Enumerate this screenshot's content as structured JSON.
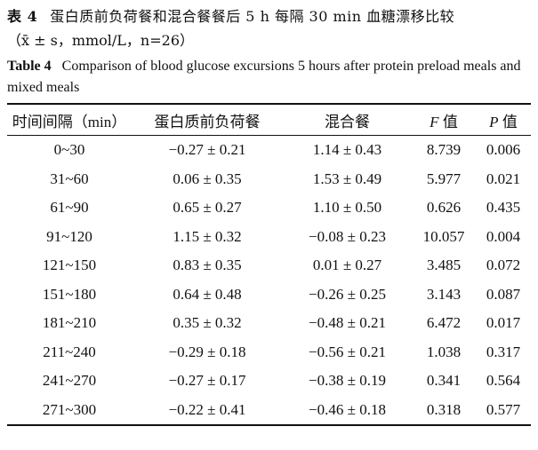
{
  "caption": {
    "cn_label": "表 4",
    "cn_title": "蛋白质前负荷餐和混合餐餐后 5 h 每隔 30 min 血糖漂移比较",
    "cn_subtitle": "（x̄ ± s，mmol/L，n=26）",
    "en_label": "Table 4",
    "en_title": "Comparison of blood glucose excursions 5 hours after protein preload meals and mixed meals"
  },
  "table": {
    "headers": {
      "interval": "时间间隔（min）",
      "protein": "蛋白质前负荷餐",
      "mixed": "混合餐",
      "f_symbol": "F",
      "f_suffix": " 值",
      "p_symbol": "P",
      "p_suffix": " 值"
    },
    "rows": [
      {
        "interval": "0~30",
        "protein": "−0.27 ± 0.21",
        "mixed": "1.14 ± 0.43",
        "f": "8.739",
        "p": "0.006"
      },
      {
        "interval": "31~60",
        "protein": "0.06 ± 0.35",
        "mixed": "1.53 ± 0.49",
        "f": "5.977",
        "p": "0.021"
      },
      {
        "interval": "61~90",
        "protein": "0.65 ± 0.27",
        "mixed": "1.10 ± 0.50",
        "f": "0.626",
        "p": "0.435"
      },
      {
        "interval": "91~120",
        "protein": "1.15 ± 0.32",
        "mixed": "−0.08 ± 0.23",
        "f": "10.057",
        "p": "0.004"
      },
      {
        "interval": "121~150",
        "protein": "0.83 ± 0.35",
        "mixed": "0.01 ± 0.27",
        "f": "3.485",
        "p": "0.072"
      },
      {
        "interval": "151~180",
        "protein": "0.64 ± 0.48",
        "mixed": "−0.26 ± 0.25",
        "f": "3.143",
        "p": "0.087"
      },
      {
        "interval": "181~210",
        "protein": "0.35 ± 0.32",
        "mixed": "−0.48 ± 0.21",
        "f": "6.472",
        "p": "0.017"
      },
      {
        "interval": "211~240",
        "protein": "−0.29 ± 0.18",
        "mixed": "−0.56 ± 0.21",
        "f": "1.038",
        "p": "0.317"
      },
      {
        "interval": "241~270",
        "protein": "−0.27 ± 0.17",
        "mixed": "−0.38 ± 0.19",
        "f": "0.341",
        "p": "0.564"
      },
      {
        "interval": "271~300",
        "protein": "−0.22 ± 0.41",
        "mixed": "−0.46 ± 0.18",
        "f": "0.318",
        "p": "0.577"
      }
    ]
  }
}
